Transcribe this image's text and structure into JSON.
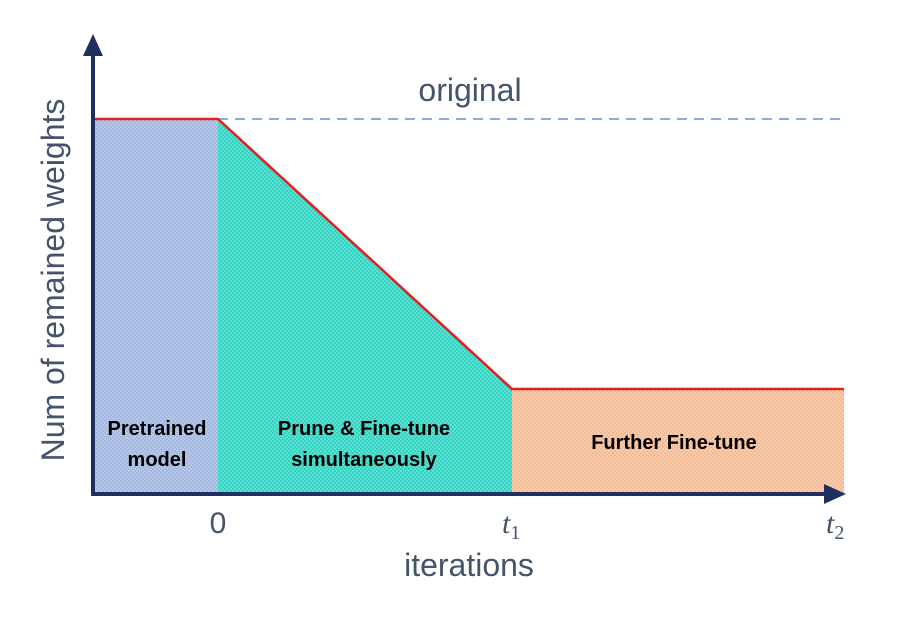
{
  "diagram": {
    "y_axis_label": "Num of remained weights",
    "x_axis_label": "iterations",
    "reference_line_label": "original",
    "regions": {
      "pretrained": {
        "line1": "Pretrained",
        "line2": "model"
      },
      "prune": {
        "line1": "Prune & Fine-tune",
        "line2": "simultaneously"
      },
      "further": {
        "line1": "Further Fine-tune"
      }
    },
    "ticks": {
      "zero": "0",
      "t1_base": "t",
      "t1_sub": "1",
      "t2_base": "t",
      "t2_sub": "2"
    },
    "colors": {
      "axis": "#1f2f5f",
      "weight_curve": "#e02020",
      "reference_line": "#8faadc",
      "pretrained_fill": "#b4c7e7",
      "prune_fill": "#40e0d0",
      "further_fill": "#f8cbad",
      "text": "#44546a"
    }
  }
}
